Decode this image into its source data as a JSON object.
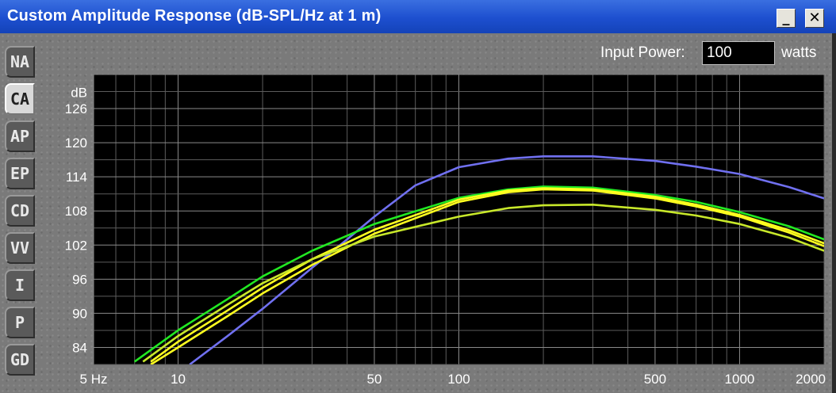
{
  "window": {
    "title": "Custom Amplitude Response (dB-SPL/Hz at 1 m)",
    "minimize_glyph": "_",
    "close_glyph": "✕"
  },
  "sidebar": {
    "tabs": [
      {
        "label": "NA",
        "active": false
      },
      {
        "label": "CA",
        "active": true
      },
      {
        "label": "AP",
        "active": false
      },
      {
        "label": "EP",
        "active": false
      },
      {
        "label": "CD",
        "active": false
      },
      {
        "label": "VV",
        "active": false
      },
      {
        "label": "I",
        "active": false
      },
      {
        "label": "P",
        "active": false
      },
      {
        "label": "GD",
        "active": false
      }
    ]
  },
  "input_power": {
    "label": "Input Power:",
    "value": "100",
    "unit": "watts"
  },
  "chart_data": {
    "type": "line",
    "ylabel": "dB",
    "x_scale": "log",
    "xlim": [
      5,
      2000
    ],
    "ylim": [
      81,
      132
    ],
    "grid": true,
    "x_tick_labels": [
      {
        "value": 5,
        "label": "5 Hz"
      },
      {
        "value": 10,
        "label": "10"
      },
      {
        "value": 50,
        "label": "50"
      },
      {
        "value": 100,
        "label": "100"
      },
      {
        "value": 500,
        "label": "500"
      },
      {
        "value": 1000,
        "label": "1000"
      },
      {
        "value": 2000,
        "label": "2000"
      }
    ],
    "y_ticks": [
      84,
      90,
      96,
      102,
      108,
      114,
      120,
      126
    ],
    "series": [
      {
        "color": "#7070f0",
        "points": [
          [
            11,
            81
          ],
          [
            15,
            86
          ],
          [
            20,
            90.8
          ],
          [
            30,
            98
          ],
          [
            40,
            103
          ],
          [
            50,
            107
          ],
          [
            70,
            112.5
          ],
          [
            100,
            115.7
          ],
          [
            150,
            117.2
          ],
          [
            200,
            117.6
          ],
          [
            300,
            117.6
          ],
          [
            500,
            116.8
          ],
          [
            700,
            115.8
          ],
          [
            1000,
            114.5
          ],
          [
            1500,
            112.2
          ],
          [
            2000,
            110.2
          ]
        ]
      },
      {
        "color": "#22e822",
        "points": [
          [
            7,
            81.5
          ],
          [
            10,
            87
          ],
          [
            15,
            92.5
          ],
          [
            20,
            96.5
          ],
          [
            30,
            101
          ],
          [
            50,
            105.7
          ],
          [
            100,
            110.3
          ],
          [
            150,
            111.8
          ],
          [
            200,
            112.3
          ],
          [
            300,
            112.1
          ],
          [
            500,
            110.8
          ],
          [
            700,
            109.6
          ],
          [
            1000,
            107.8
          ],
          [
            1500,
            105.3
          ],
          [
            2000,
            103
          ]
        ]
      },
      {
        "color": "#ffff20",
        "points": [
          [
            8,
            81
          ],
          [
            10,
            84
          ],
          [
            15,
            89.5
          ],
          [
            20,
            93.5
          ],
          [
            30,
            98.5
          ],
          [
            50,
            104
          ],
          [
            100,
            109.6
          ],
          [
            150,
            111.3
          ],
          [
            200,
            111.8
          ],
          [
            300,
            111.6
          ],
          [
            500,
            110.2
          ],
          [
            700,
            108.8
          ],
          [
            1000,
            107
          ],
          [
            1500,
            104.2
          ],
          [
            2000,
            101.8
          ]
        ]
      },
      {
        "color": "#ffff20",
        "points": [
          [
            8,
            81.5
          ],
          [
            10,
            85
          ],
          [
            15,
            90.5
          ],
          [
            20,
            94.5
          ],
          [
            30,
            99.5
          ],
          [
            50,
            104.7
          ],
          [
            100,
            110
          ],
          [
            150,
            111.6
          ],
          [
            200,
            112
          ],
          [
            300,
            111.8
          ],
          [
            500,
            110.5
          ],
          [
            700,
            109.1
          ],
          [
            1000,
            107.3
          ],
          [
            1500,
            104.6
          ],
          [
            2000,
            102.3
          ]
        ]
      },
      {
        "color": "#c8e82a",
        "points": [
          [
            7.5,
            81.5
          ],
          [
            10,
            86
          ],
          [
            15,
            91.5
          ],
          [
            20,
            95.3
          ],
          [
            30,
            99.5
          ],
          [
            50,
            103.5
          ],
          [
            100,
            107
          ],
          [
            150,
            108.5
          ],
          [
            200,
            109
          ],
          [
            300,
            109.1
          ],
          [
            500,
            108.2
          ],
          [
            700,
            107.2
          ],
          [
            1000,
            105.7
          ],
          [
            1500,
            103.3
          ],
          [
            2000,
            101
          ]
        ]
      }
    ]
  }
}
